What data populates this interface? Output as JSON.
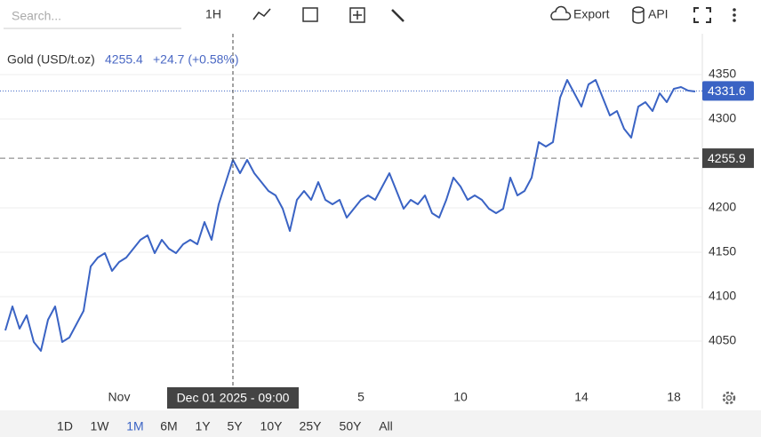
{
  "toolbar": {
    "search_placeholder": "Search...",
    "interval": "1H",
    "export": "Export",
    "api": "API"
  },
  "legend": {
    "name": "Gold (USD/t.oz)",
    "price": "4255.4",
    "change": "+24.7 (+0.58%)"
  },
  "chart_data": {
    "type": "line",
    "categories": [
      null,
      null,
      null,
      null,
      null,
      null,
      null,
      null,
      null,
      null,
      null,
      null,
      null,
      null,
      null,
      null,
      "Nov",
      null,
      null,
      null,
      null,
      null,
      null,
      null,
      null,
      null,
      null,
      null,
      null,
      null,
      null,
      null,
      null,
      null,
      null,
      null,
      null,
      null,
      null,
      null,
      null,
      null,
      null,
      null,
      null,
      null,
      null,
      null,
      null,
      null,
      "5",
      null,
      null,
      null,
      null,
      null,
      null,
      null,
      null,
      null,
      null,
      null,
      null,
      null,
      "10",
      null,
      null,
      null,
      null,
      null,
      null,
      null,
      null,
      null,
      null,
      null,
      null,
      null,
      null,
      null,
      null,
      "14",
      null,
      null,
      null,
      null,
      null,
      null,
      null,
      null,
      null,
      null,
      null,
      null,
      "18",
      null,
      null,
      null
    ],
    "series": [
      {
        "name": "Gold (USD/t.oz)",
        "color": "#3a63c4",
        "values": [
          4062,
          4089,
          4064,
          4079,
          4049,
          4039,
          4074,
          4089,
          4049,
          4054,
          4069,
          4084,
          4134,
          4144,
          4149,
          4129,
          4139,
          4144,
          4154,
          4164,
          4169,
          4149,
          4164,
          4154,
          4149,
          4159,
          4164,
          4159,
          4184,
          4164,
          4204,
          4229,
          4254,
          4239,
          4254,
          4239,
          4229,
          4219,
          4214,
          4199,
          4174,
          4209,
          4219,
          4209,
          4229,
          4209,
          4204,
          4209,
          4189,
          4199,
          4209,
          4214,
          4209,
          4224,
          4239,
          4219,
          4199,
          4209,
          4204,
          4214,
          4194,
          4189,
          4209,
          4234,
          4224,
          4209,
          4214,
          4209,
          4199,
          4194,
          4199,
          4234,
          4214,
          4219,
          4234,
          4274,
          4269,
          4274,
          4324,
          4344,
          4329,
          4314,
          4339,
          4344,
          4324,
          4304,
          4309,
          4289,
          4279,
          4314,
          4319,
          4309,
          4329,
          4319,
          4334,
          4336,
          4332,
          4331
        ]
      }
    ],
    "ylim": [
      4000,
      4396
    ],
    "yticks": [
      4050,
      4100,
      4150,
      4200,
      4300,
      4350
    ],
    "grid": true,
    "last_price": 4331.6,
    "crosshair": {
      "index": 32,
      "value": 4255.9,
      "x_label": "Dec 01 2025 - 09:00"
    }
  },
  "ranges": {
    "items": [
      "1D",
      "1W",
      "1M",
      "6M",
      "1Y",
      "5Y",
      "10Y",
      "25Y",
      "50Y",
      "All"
    ],
    "active": 2
  }
}
